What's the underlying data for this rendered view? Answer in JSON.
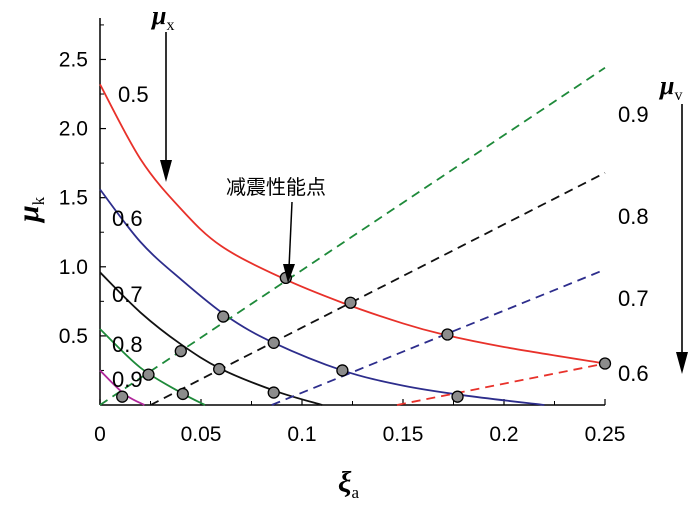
{
  "chart_data": {
    "type": "line",
    "xlabel": "ξ",
    "xlabel_sub": "a",
    "ylabel": "μ",
    "ylabel_sub": "k",
    "xlim": [
      0,
      0.25
    ],
    "ylim": [
      0,
      2.8
    ],
    "x_ticks": [
      {
        "value": 0,
        "label": "0"
      },
      {
        "value": 0.05,
        "label": "0.05"
      },
      {
        "value": 0.1,
        "label": "0.1"
      },
      {
        "value": 0.15,
        "label": "0.15"
      },
      {
        "value": 0.2,
        "label": "0.2"
      },
      {
        "value": 0.25,
        "label": "0.25"
      }
    ],
    "y_ticks": [
      {
        "value": 0.5,
        "label": "0.5"
      },
      {
        "value": 1.0,
        "label": "1.0"
      },
      {
        "value": 1.5,
        "label": "1.5"
      },
      {
        "value": 2.0,
        "label": "2.0"
      },
      {
        "value": 2.5,
        "label": "2.5"
      }
    ],
    "mu_x_title": "μ",
    "mu_x_sub": "x",
    "mu_v_title": "μ",
    "mu_v_sub": "v",
    "annotation": "减震性能点",
    "mu_x_curves": [
      {
        "label": "0.5",
        "color": "#e8312a",
        "points": [
          [
            0,
            2.32
          ],
          [
            0.02,
            1.78
          ],
          [
            0.04,
            1.42
          ],
          [
            0.06,
            1.15
          ],
          [
            0.09,
            0.92
          ],
          [
            0.12,
            0.74
          ],
          [
            0.15,
            0.59
          ],
          [
            0.17,
            0.51
          ],
          [
            0.2,
            0.42
          ],
          [
            0.25,
            0.3
          ]
        ]
      },
      {
        "label": "0.6",
        "color": "#2d2d8c",
        "points": [
          [
            0,
            1.56
          ],
          [
            0.02,
            1.18
          ],
          [
            0.04,
            0.91
          ],
          [
            0.063,
            0.64
          ],
          [
            0.086,
            0.45
          ],
          [
            0.12,
            0.25
          ],
          [
            0.15,
            0.14
          ],
          [
            0.18,
            0.07
          ],
          [
            0.22,
            0.0
          ]
        ]
      },
      {
        "label": "0.7",
        "color": "#111111",
        "points": [
          [
            0,
            0.96
          ],
          [
            0.02,
            0.67
          ],
          [
            0.04,
            0.44
          ],
          [
            0.06,
            0.26
          ],
          [
            0.087,
            0.1
          ],
          [
            0.11,
            0.0
          ]
        ]
      },
      {
        "label": "0.8",
        "color": "#1e8a3a",
        "points": [
          [
            0,
            0.55
          ],
          [
            0.02,
            0.27
          ],
          [
            0.04,
            0.09
          ],
          [
            0.052,
            0.0
          ]
        ]
      },
      {
        "label": "0.9",
        "color": "#b0269b",
        "points": [
          [
            0,
            0.25
          ],
          [
            0.012,
            0.08
          ],
          [
            0.022,
            0.0
          ]
        ]
      }
    ],
    "mu_v_curves": [
      {
        "label": "0.9",
        "color": "#1e8a3a",
        "points": [
          [
            0,
            0
          ],
          [
            0.25,
            2.44
          ]
        ]
      },
      {
        "label": "0.8",
        "color": "#111111",
        "points": [
          [
            0.025,
            0
          ],
          [
            0.25,
            1.68
          ]
        ]
      },
      {
        "label": "0.7",
        "color": "#2d2d8c",
        "points": [
          [
            0.085,
            0
          ],
          [
            0.25,
            0.98
          ]
        ]
      },
      {
        "label": "0.6",
        "color": "#e8312a",
        "points": [
          [
            0.147,
            0
          ],
          [
            0.25,
            0.3
          ]
        ]
      }
    ],
    "performance_points": [
      [
        0.092,
        0.92
      ],
      [
        0.124,
        0.74
      ],
      [
        0.172,
        0.51
      ],
      [
        0.25,
        0.3
      ],
      [
        0.061,
        0.64
      ],
      [
        0.086,
        0.45
      ],
      [
        0.12,
        0.25
      ],
      [
        0.177,
        0.06
      ],
      [
        0.04,
        0.39
      ],
      [
        0.059,
        0.26
      ],
      [
        0.086,
        0.09
      ],
      [
        0.024,
        0.22
      ],
      [
        0.041,
        0.08
      ],
      [
        0.011,
        0.06
      ]
    ]
  }
}
